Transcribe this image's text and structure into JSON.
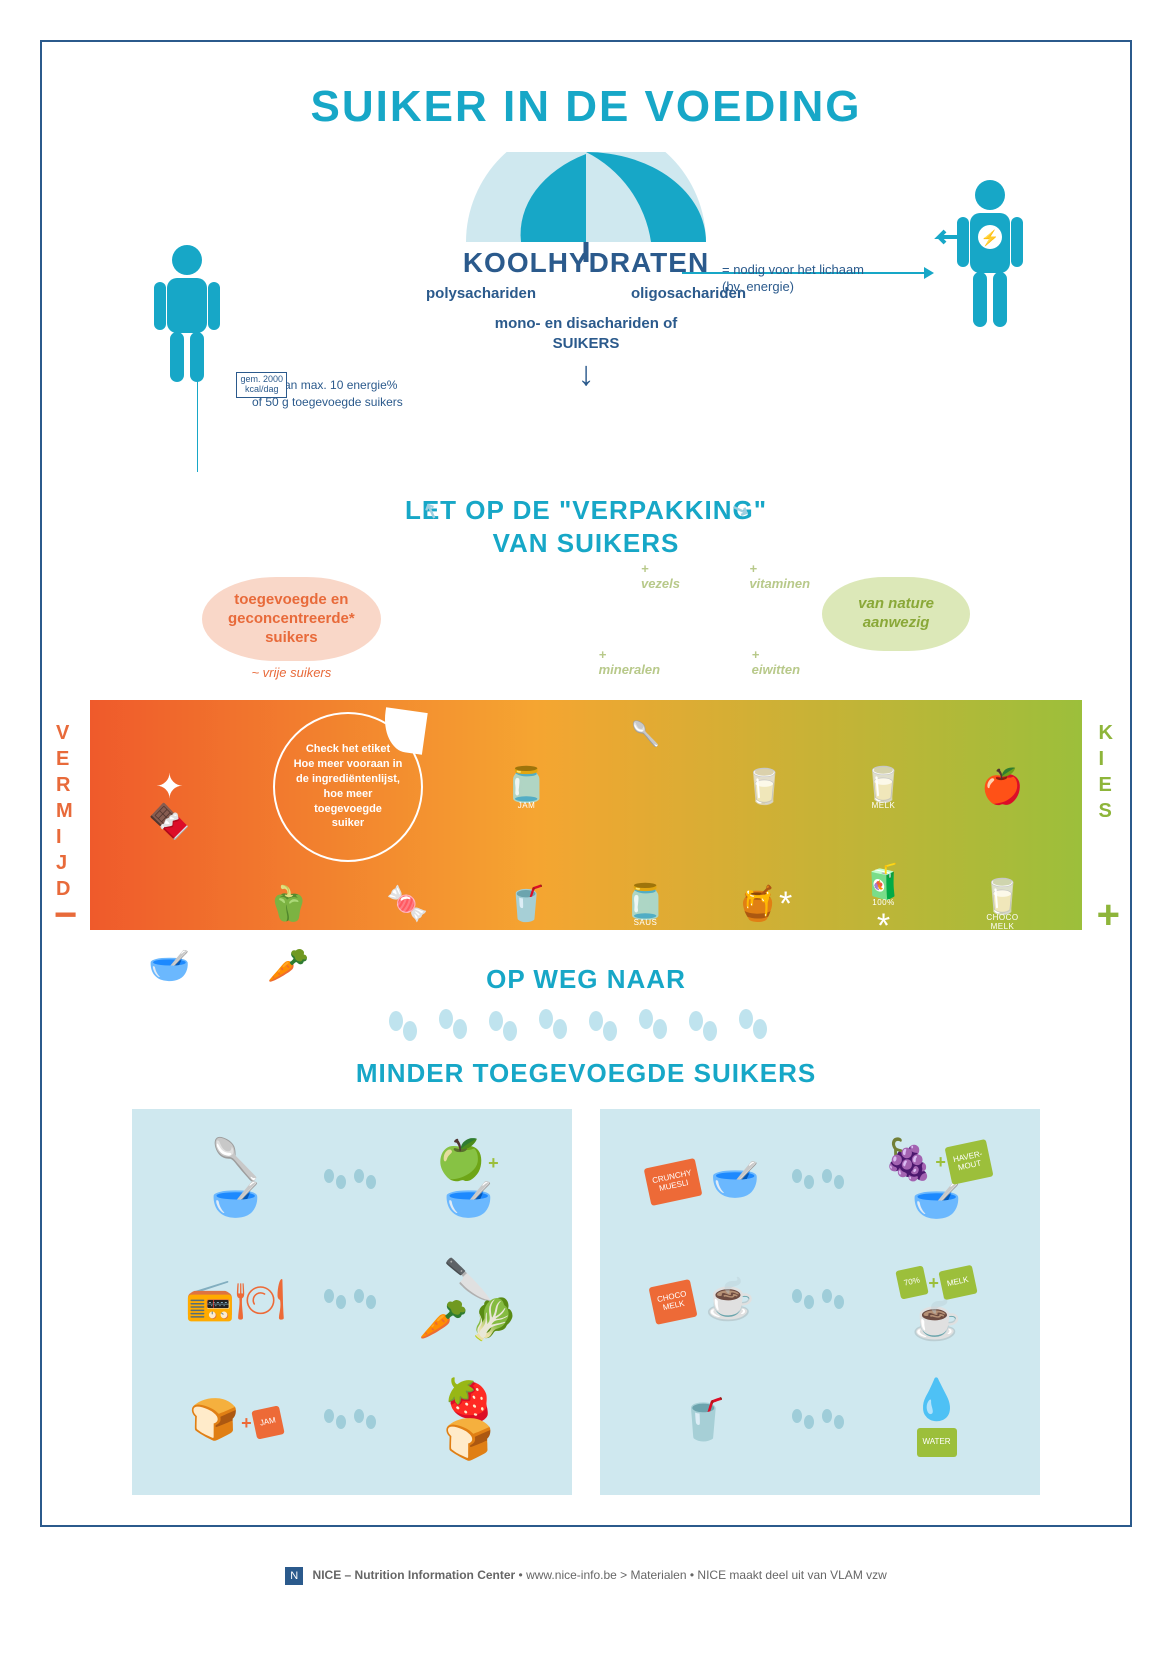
{
  "colors": {
    "cyan": "#17a7c7",
    "navy": "#2b5a8c",
    "orange": "#ed6a37",
    "green": "#9cbf3b",
    "green_olive": "#8aa838",
    "salmon_bg": "#f9d7c8",
    "olive_bg": "#dce8b8",
    "panel_bg": "#cfe8ef",
    "border": "#2b5a8c",
    "band_gradient_from": "#ef5a2b",
    "band_gradient_mid": "#f5a531",
    "band_gradient_to": "#9cbf3b"
  },
  "title": "SUIKER IN DE VOEDING",
  "umbrella": {
    "heading": "KOOLHYDRATEN",
    "left": "polysachariden",
    "right": "oligosachariden",
    "mono_line1": "mono- en disachariden of",
    "mono_line2": "SUIKERS"
  },
  "note_right": "= nodig voor het lichaam\n(bv. energie)",
  "person_left_badge": "gem. 2000\nkcal/dag",
  "note_left": "waarvan max. 10 energie%\nof 50 g toegevoegde suikers",
  "letop_line1": "LET OP DE \"VERPAKKING\"",
  "letop_line2": "VAN SUIKERS",
  "bubble_left_l1": "toegevoegde en",
  "bubble_left_l2": "geconcentreerde*",
  "bubble_left_l3": "suikers",
  "vrije": "~ vrije suikers",
  "bubble_right_l1": "van nature",
  "bubble_right_l2": "aanwezig",
  "nutrients": {
    "tl": "+ vezels",
    "tr": "+ vitaminen",
    "bl": "+ mineralen",
    "br": "+ eiwitten"
  },
  "side_left": "VERMIJD",
  "side_right": "KIES",
  "peel_l1": "Check het etiket",
  "peel_l2": "Hoe meer vooraan in",
  "peel_l3": "de ingrediëntenlijst,",
  "peel_l4": "hoe meer toegevoegde",
  "peel_l5": "suiker",
  "band_labels": {
    "jam": "JAM",
    "melk": "MELK",
    "saus": "SAUS",
    "juice": "100%",
    "choco": "CHOCO\nMELK"
  },
  "opweg": "OP WEG NAAR",
  "minder": "MINDER TOEGEVOEGDE SUIKERS",
  "panel_labels": {
    "crunchy": "CRUNCHY\nMUESLI",
    "haver": "HAVER-\nMOUT",
    "choco": "CHOCO\nMELK",
    "melk": "MELK",
    "pct": "70%",
    "jam": "JAM",
    "water": "WATER"
  },
  "footer": {
    "org": "NICE – Nutrition Information Center",
    "sep1": " • ",
    "url": "www.nice-info.be > Materialen",
    "sep2": " • ",
    "tail": "NICE maakt deel uit van VLAM vzw"
  }
}
